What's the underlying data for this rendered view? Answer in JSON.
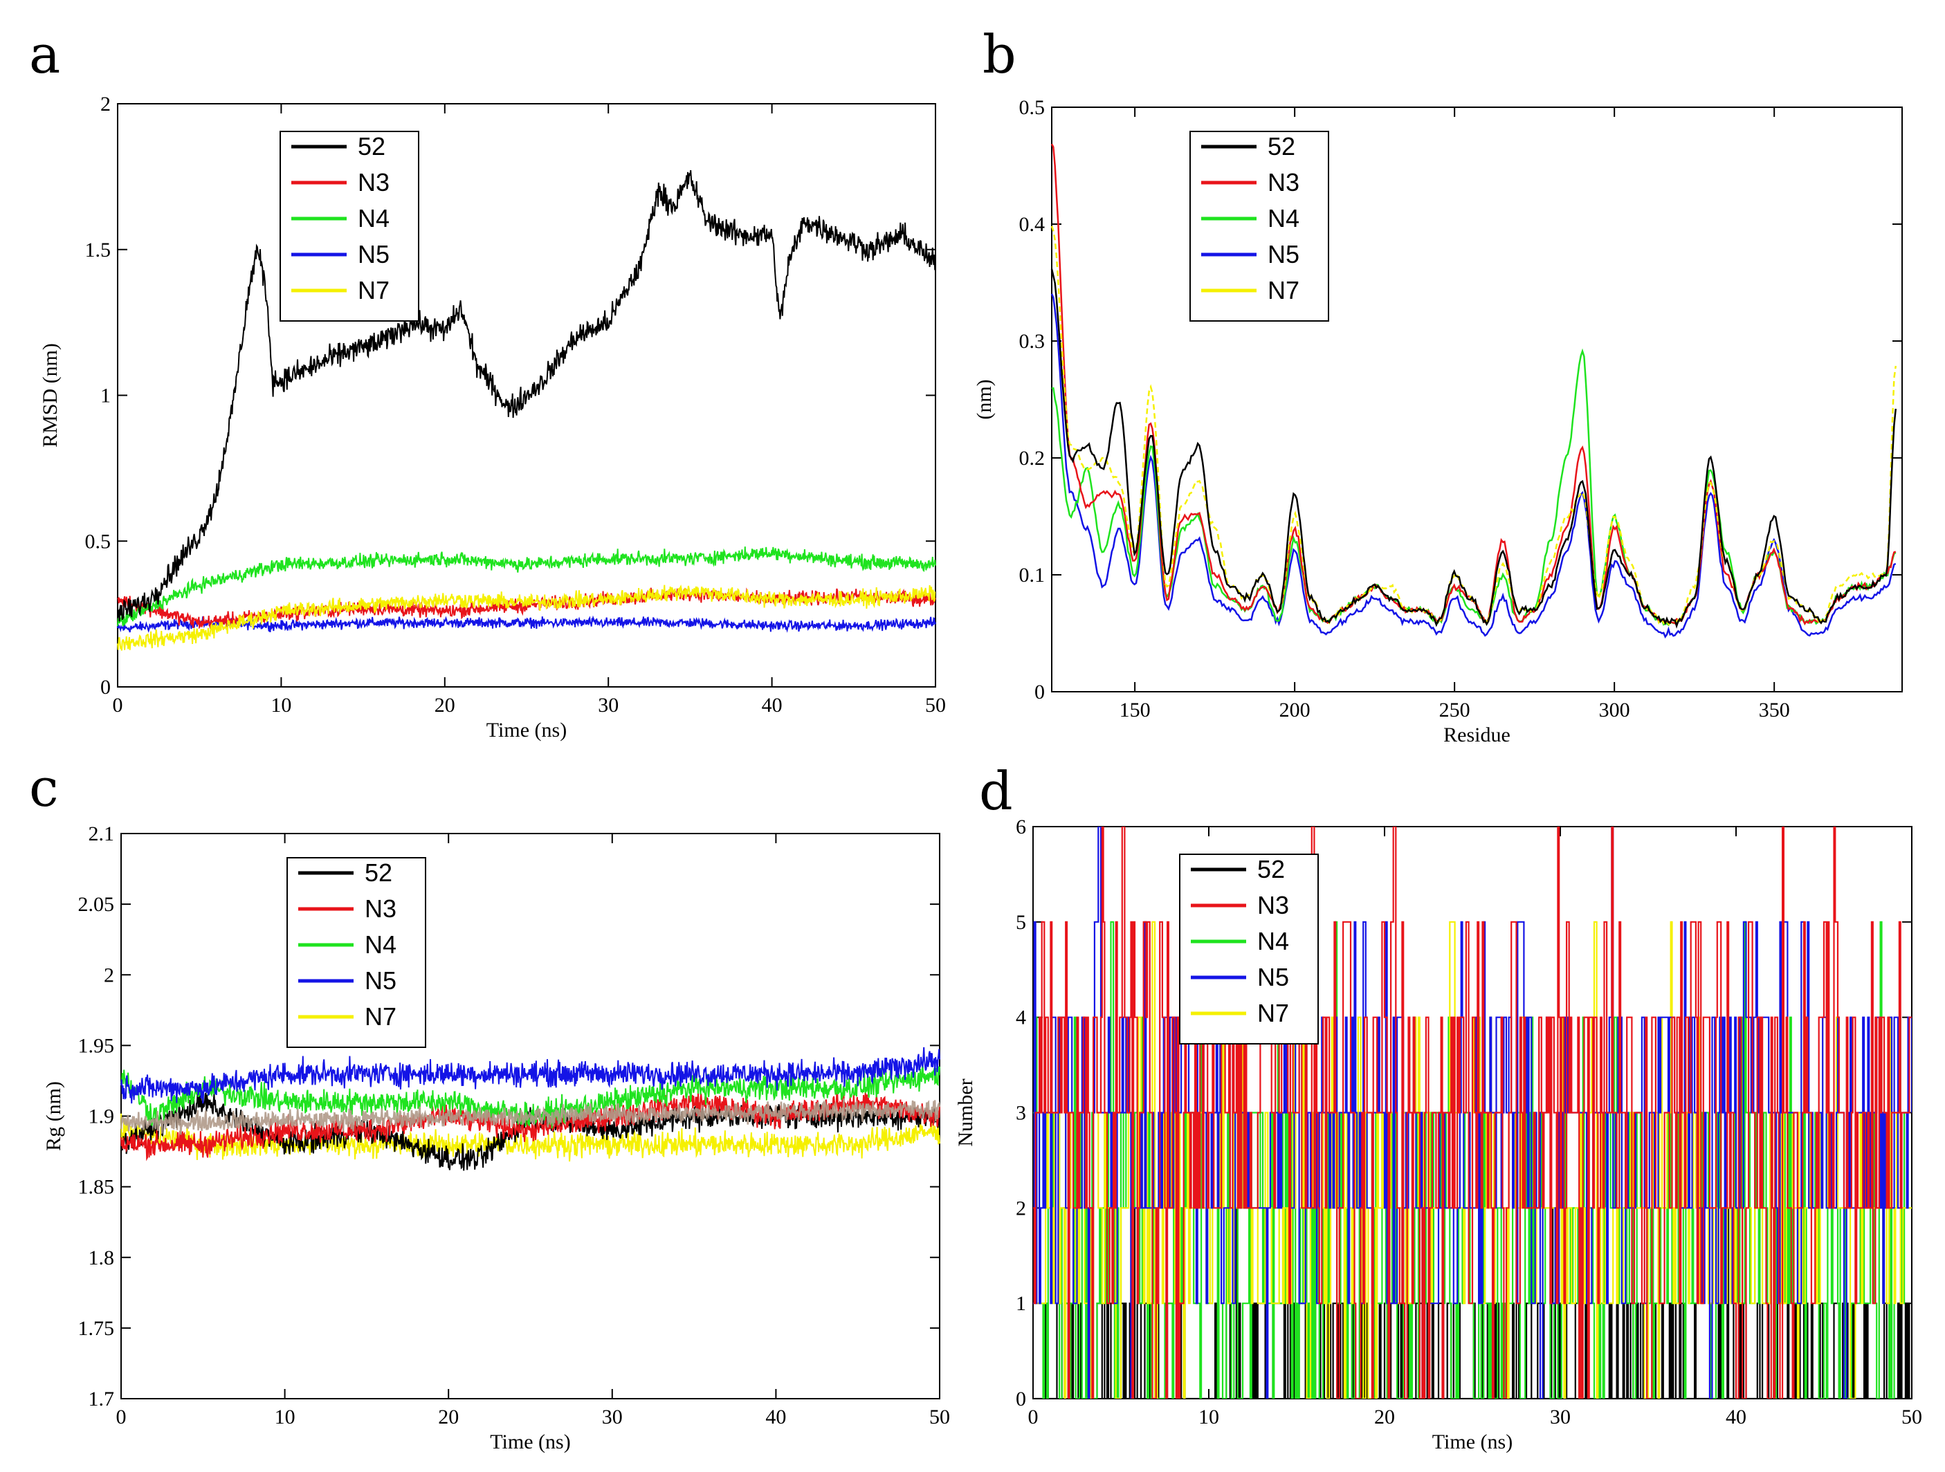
{
  "colors": {
    "52": "#000000",
    "N3": "#e8141a",
    "N4": "#1fe31f",
    "N5": "#1414e6",
    "N7": "#f5f000"
  },
  "chart_data": [
    {
      "panel": "a",
      "type": "line",
      "title": "",
      "xlabel": "Time (ns)",
      "ylabel": "RMSD (nm)",
      "xlim": [
        0,
        50
      ],
      "ylim": [
        0,
        2
      ],
      "xticks": [
        "0",
        "10",
        "20",
        "30",
        "40",
        "50"
      ],
      "yticks": [
        "0",
        "0.5",
        "1",
        "1.5",
        "2"
      ],
      "legend": [
        "52",
        "N3",
        "N4",
        "N5",
        "N7"
      ],
      "legend_position": "top-left",
      "series": [
        {
          "name": "52",
          "x": [
            0,
            2,
            4,
            5,
            6,
            7,
            8,
            8.5,
            9,
            9.5,
            10,
            12,
            14,
            16,
            18,
            20,
            21,
            22,
            24,
            25,
            26,
            28,
            30,
            32,
            33,
            34,
            35,
            36,
            38,
            40,
            40.5,
            41,
            42,
            44,
            46,
            48,
            50
          ],
          "y": [
            0.25,
            0.3,
            0.45,
            0.52,
            0.65,
            0.95,
            1.35,
            1.5,
            1.4,
            1.05,
            1.05,
            1.1,
            1.15,
            1.18,
            1.25,
            1.22,
            1.3,
            1.1,
            0.95,
            1.0,
            1.05,
            1.2,
            1.25,
            1.45,
            1.7,
            1.65,
            1.75,
            1.6,
            1.55,
            1.55,
            1.25,
            1.45,
            1.6,
            1.55,
            1.5,
            1.55,
            1.45
          ]
        },
        {
          "name": "N3",
          "x": [
            0,
            5,
            10,
            15,
            20,
            25,
            30,
            35,
            40,
            45,
            50
          ],
          "y": [
            0.3,
            0.22,
            0.25,
            0.27,
            0.26,
            0.28,
            0.3,
            0.32,
            0.3,
            0.31,
            0.3
          ]
        },
        {
          "name": "N4",
          "x": [
            0,
            5,
            10,
            15,
            20,
            25,
            30,
            35,
            40,
            45,
            50
          ],
          "y": [
            0.22,
            0.35,
            0.42,
            0.43,
            0.44,
            0.42,
            0.44,
            0.44,
            0.46,
            0.43,
            0.42
          ]
        },
        {
          "name": "N5",
          "x": [
            0,
            5,
            10,
            15,
            20,
            25,
            30,
            35,
            40,
            45,
            50
          ],
          "y": [
            0.2,
            0.22,
            0.21,
            0.22,
            0.22,
            0.22,
            0.22,
            0.22,
            0.21,
            0.21,
            0.22
          ]
        },
        {
          "name": "N7",
          "x": [
            0,
            5,
            10,
            15,
            20,
            25,
            30,
            35,
            40,
            45,
            50
          ],
          "y": [
            0.15,
            0.18,
            0.26,
            0.28,
            0.3,
            0.29,
            0.3,
            0.33,
            0.3,
            0.3,
            0.32
          ]
        }
      ]
    },
    {
      "panel": "b",
      "type": "line",
      "title": "",
      "xlabel": "Residue",
      "ylabel": "(nm)",
      "xlim": [
        124,
        390
      ],
      "ylim": [
        0,
        0.5
      ],
      "xticks": [
        "150",
        "200",
        "250",
        "300",
        "350"
      ],
      "yticks": [
        "0",
        "0.1",
        "0.2",
        "0.3",
        "0.4",
        "0.5"
      ],
      "legend": [
        "52",
        "N3",
        "N4",
        "N5",
        "N7"
      ],
      "legend_position": "top-left",
      "series": [
        {
          "name": "52",
          "x": [
            124,
            130,
            135,
            140,
            145,
            150,
            155,
            160,
            165,
            170,
            175,
            180,
            185,
            190,
            195,
            200,
            205,
            210,
            215,
            220,
            225,
            230,
            235,
            240,
            245,
            250,
            255,
            260,
            265,
            270,
            275,
            280,
            285,
            290,
            295,
            300,
            305,
            310,
            315,
            320,
            325,
            330,
            335,
            340,
            345,
            350,
            355,
            360,
            365,
            370,
            375,
            380,
            385,
            388
          ],
          "y": [
            0.36,
            0.2,
            0.21,
            0.19,
            0.25,
            0.12,
            0.22,
            0.1,
            0.19,
            0.21,
            0.12,
            0.09,
            0.08,
            0.1,
            0.07,
            0.17,
            0.08,
            0.06,
            0.07,
            0.08,
            0.09,
            0.08,
            0.07,
            0.07,
            0.06,
            0.1,
            0.08,
            0.06,
            0.12,
            0.07,
            0.07,
            0.09,
            0.13,
            0.18,
            0.07,
            0.12,
            0.1,
            0.07,
            0.06,
            0.06,
            0.08,
            0.2,
            0.11,
            0.07,
            0.1,
            0.15,
            0.08,
            0.07,
            0.06,
            0.08,
            0.09,
            0.09,
            0.1,
            0.24
          ]
        },
        {
          "name": "N3",
          "x": [
            124,
            130,
            135,
            140,
            145,
            150,
            155,
            160,
            165,
            170,
            175,
            180,
            185,
            190,
            195,
            200,
            205,
            210,
            215,
            220,
            225,
            230,
            235,
            240,
            245,
            250,
            255,
            260,
            265,
            270,
            275,
            280,
            285,
            290,
            295,
            300,
            305,
            310,
            315,
            320,
            325,
            330,
            335,
            340,
            345,
            350,
            355,
            360,
            365,
            370,
            375,
            380,
            385,
            388
          ],
          "y": [
            0.47,
            0.2,
            0.16,
            0.17,
            0.17,
            0.11,
            0.23,
            0.08,
            0.15,
            0.15,
            0.1,
            0.08,
            0.07,
            0.09,
            0.07,
            0.14,
            0.07,
            0.06,
            0.07,
            0.08,
            0.09,
            0.08,
            0.07,
            0.07,
            0.06,
            0.09,
            0.08,
            0.06,
            0.13,
            0.06,
            0.07,
            0.1,
            0.14,
            0.21,
            0.07,
            0.14,
            0.1,
            0.07,
            0.06,
            0.06,
            0.08,
            0.18,
            0.1,
            0.07,
            0.1,
            0.12,
            0.07,
            0.06,
            0.06,
            0.08,
            0.09,
            0.09,
            0.1,
            0.12
          ]
        },
        {
          "name": "N4",
          "x": [
            124,
            130,
            135,
            140,
            145,
            150,
            155,
            160,
            165,
            170,
            175,
            180,
            185,
            190,
            195,
            200,
            205,
            210,
            215,
            220,
            225,
            230,
            235,
            240,
            245,
            250,
            255,
            260,
            265,
            270,
            275,
            280,
            285,
            290,
            295,
            300,
            305,
            310,
            315,
            320,
            325,
            330,
            335,
            340,
            345,
            350,
            355,
            360,
            365,
            370,
            375,
            380,
            385,
            388
          ],
          "y": [
            0.26,
            0.15,
            0.19,
            0.12,
            0.16,
            0.1,
            0.21,
            0.08,
            0.14,
            0.15,
            0.09,
            0.08,
            0.07,
            0.09,
            0.06,
            0.13,
            0.07,
            0.06,
            0.07,
            0.08,
            0.09,
            0.08,
            0.07,
            0.07,
            0.06,
            0.09,
            0.07,
            0.06,
            0.1,
            0.06,
            0.07,
            0.13,
            0.2,
            0.29,
            0.08,
            0.15,
            0.1,
            0.07,
            0.06,
            0.06,
            0.08,
            0.19,
            0.12,
            0.07,
            0.1,
            0.12,
            0.07,
            0.06,
            0.06,
            0.08,
            0.09,
            0.09,
            0.1,
            0.12
          ]
        },
        {
          "name": "N5",
          "x": [
            124,
            130,
            135,
            140,
            145,
            150,
            155,
            160,
            165,
            170,
            175,
            180,
            185,
            190,
            195,
            200,
            205,
            210,
            215,
            220,
            225,
            230,
            235,
            240,
            245,
            250,
            255,
            260,
            265,
            270,
            275,
            280,
            285,
            290,
            295,
            300,
            305,
            310,
            315,
            320,
            325,
            330,
            335,
            340,
            345,
            350,
            355,
            360,
            365,
            370,
            375,
            380,
            385,
            388
          ],
          "y": [
            0.34,
            0.17,
            0.14,
            0.09,
            0.14,
            0.09,
            0.2,
            0.07,
            0.12,
            0.13,
            0.08,
            0.07,
            0.06,
            0.08,
            0.06,
            0.12,
            0.06,
            0.05,
            0.06,
            0.07,
            0.08,
            0.07,
            0.06,
            0.06,
            0.05,
            0.08,
            0.06,
            0.05,
            0.08,
            0.05,
            0.06,
            0.08,
            0.12,
            0.17,
            0.06,
            0.11,
            0.09,
            0.06,
            0.05,
            0.05,
            0.07,
            0.17,
            0.09,
            0.06,
            0.09,
            0.13,
            0.07,
            0.05,
            0.05,
            0.07,
            0.08,
            0.08,
            0.09,
            0.11
          ]
        },
        {
          "name": "N7",
          "x": [
            124,
            130,
            135,
            140,
            145,
            150,
            155,
            160,
            165,
            170,
            175,
            180,
            185,
            190,
            195,
            200,
            205,
            210,
            215,
            220,
            225,
            230,
            235,
            240,
            245,
            250,
            255,
            260,
            265,
            270,
            275,
            280,
            285,
            290,
            295,
            300,
            305,
            310,
            315,
            320,
            325,
            330,
            335,
            340,
            345,
            350,
            355,
            360,
            365,
            370,
            375,
            380,
            385,
            388
          ],
          "y": [
            0.4,
            0.21,
            0.19,
            0.2,
            0.18,
            0.12,
            0.26,
            0.09,
            0.16,
            0.18,
            0.14,
            0.09,
            0.08,
            0.1,
            0.07,
            0.15,
            0.08,
            0.06,
            0.07,
            0.08,
            0.09,
            0.09,
            0.07,
            0.07,
            0.06,
            0.1,
            0.08,
            0.06,
            0.11,
            0.07,
            0.07,
            0.11,
            0.15,
            0.17,
            0.08,
            0.15,
            0.11,
            0.07,
            0.06,
            0.06,
            0.09,
            0.18,
            0.11,
            0.07,
            0.1,
            0.13,
            0.08,
            0.07,
            0.06,
            0.09,
            0.1,
            0.1,
            0.1,
            0.28
          ]
        }
      ]
    },
    {
      "panel": "c",
      "type": "line",
      "title": "",
      "xlabel": "Time (ns)",
      "ylabel": "Rg (nm)",
      "xlim": [
        0,
        50
      ],
      "ylim": [
        1.7,
        2.1
      ],
      "xticks": [
        "0",
        "10",
        "20",
        "30",
        "40",
        "50"
      ],
      "yticks": [
        "1.7",
        "1.75",
        "1.8",
        "1.85",
        "1.9",
        "1.95",
        "2",
        "2.05",
        "2.1"
      ],
      "legend": [
        "52",
        "N3",
        "N4",
        "N5",
        "N7"
      ],
      "legend_position": "top-left",
      "series": [
        {
          "name": "52",
          "x": [
            0,
            5,
            10,
            15,
            20,
            22,
            25,
            30,
            35,
            40,
            45,
            50
          ],
          "y": [
            1.88,
            1.91,
            1.88,
            1.89,
            1.87,
            1.87,
            1.9,
            1.89,
            1.9,
            1.9,
            1.9,
            1.9
          ]
        },
        {
          "name": "N3",
          "x": [
            0,
            5,
            10,
            15,
            20,
            25,
            30,
            35,
            40,
            45,
            50
          ],
          "y": [
            1.88,
            1.88,
            1.89,
            1.89,
            1.9,
            1.89,
            1.9,
            1.91,
            1.9,
            1.91,
            1.9
          ]
        },
        {
          "name": "N4",
          "x": [
            0,
            2,
            5,
            10,
            15,
            20,
            25,
            30,
            35,
            40,
            45,
            50
          ],
          "y": [
            1.93,
            1.9,
            1.92,
            1.91,
            1.91,
            1.91,
            1.9,
            1.91,
            1.92,
            1.92,
            1.92,
            1.93
          ]
        },
        {
          "name": "N5",
          "x": [
            0,
            5,
            10,
            15,
            20,
            25,
            30,
            35,
            40,
            45,
            50
          ],
          "y": [
            1.92,
            1.92,
            1.93,
            1.93,
            1.93,
            1.93,
            1.93,
            1.93,
            1.93,
            1.93,
            1.94
          ]
        },
        {
          "name": "N7",
          "x": [
            0,
            5,
            10,
            15,
            20,
            25,
            30,
            35,
            40,
            45,
            50
          ],
          "y": [
            1.89,
            1.88,
            1.88,
            1.88,
            1.88,
            1.88,
            1.88,
            1.88,
            1.88,
            1.88,
            1.89
          ]
        }
      ]
    },
    {
      "panel": "d",
      "type": "line",
      "title": "",
      "xlabel": "Time (ns)",
      "ylabel": "Number",
      "xlim": [
        0,
        50
      ],
      "ylim": [
        0,
        6
      ],
      "xticks": [
        "0",
        "10",
        "20",
        "30",
        "40",
        "50"
      ],
      "yticks": [
        "0",
        "1",
        "2",
        "3",
        "4",
        "5",
        "6"
      ],
      "legend": [
        "52",
        "N3",
        "N4",
        "N5",
        "N7"
      ],
      "legend_position": "top-left",
      "series": [
        {
          "name": "52",
          "typical_range": [
            0,
            1
          ]
        },
        {
          "name": "N3",
          "typical_range": [
            3,
            5
          ]
        },
        {
          "name": "N4",
          "typical_range": [
            0,
            3
          ]
        },
        {
          "name": "N5",
          "typical_range": [
            2,
            4
          ]
        },
        {
          "name": "N7",
          "typical_range": [
            1,
            3
          ]
        }
      ]
    }
  ]
}
